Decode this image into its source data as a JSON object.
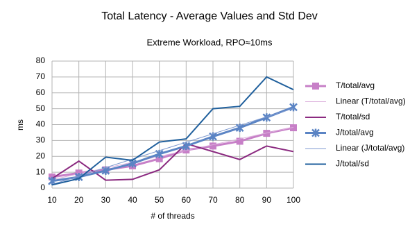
{
  "chart_data": {
    "type": "line",
    "title": "Total Latency - Average Values and Std Dev",
    "subtitle": "Extreme Workload, RPO≈10ms",
    "x_label": "# of threads",
    "y_label": "ms",
    "x": [
      10,
      20,
      30,
      40,
      50,
      60,
      70,
      80,
      90,
      100
    ],
    "xlim": [
      10,
      100
    ],
    "xticks": [
      10,
      20,
      30,
      40,
      50,
      60,
      70,
      80,
      90,
      100
    ],
    "ylim": [
      0,
      80
    ],
    "yticks": [
      0,
      10,
      20,
      30,
      40,
      50,
      60,
      70,
      80
    ],
    "grid": true,
    "legend": "right",
    "series": [
      {
        "name": "T/total/avg",
        "color": "#c77fc7",
        "marker": "square",
        "line_width": 3,
        "values": [
          7,
          9.5,
          11.5,
          14,
          18.5,
          24,
          26.5,
          29.5,
          34.5,
          38
        ]
      },
      {
        "name": "Linear (T/total/avg)",
        "color": "#dcaedc",
        "marker": null,
        "line_width": 1,
        "values": [
          5.3,
          9,
          12.6,
          16.3,
          20,
          23.7,
          27.3,
          31,
          34.7,
          38.3
        ]
      },
      {
        "name": "T/total/sd",
        "color": "#8b2a80",
        "marker": null,
        "line_width": 2,
        "values": [
          6,
          17,
          5,
          5.5,
          11.5,
          28,
          23,
          18,
          26.5,
          23
        ]
      },
      {
        "name": "J/total/avg",
        "color": "#5b84c4",
        "marker": "x",
        "line_width": 3,
        "values": [
          4.5,
          7,
          11,
          15.5,
          21.5,
          26.5,
          32.5,
          38,
          44.5,
          51
        ]
      },
      {
        "name": "Linear (J/total/avg)",
        "color": "#7f9ad0",
        "marker": null,
        "line_width": 1,
        "values": [
          2.3,
          7.6,
          12.9,
          18.3,
          23.6,
          28.9,
          34.2,
          39.6,
          44.9,
          50.2
        ]
      },
      {
        "name": "J/total/sd",
        "color": "#1f5f9c",
        "marker": null,
        "line_width": 2,
        "values": [
          2,
          6,
          19.5,
          17.5,
          29,
          31,
          50,
          51.5,
          70,
          62
        ]
      }
    ]
  }
}
